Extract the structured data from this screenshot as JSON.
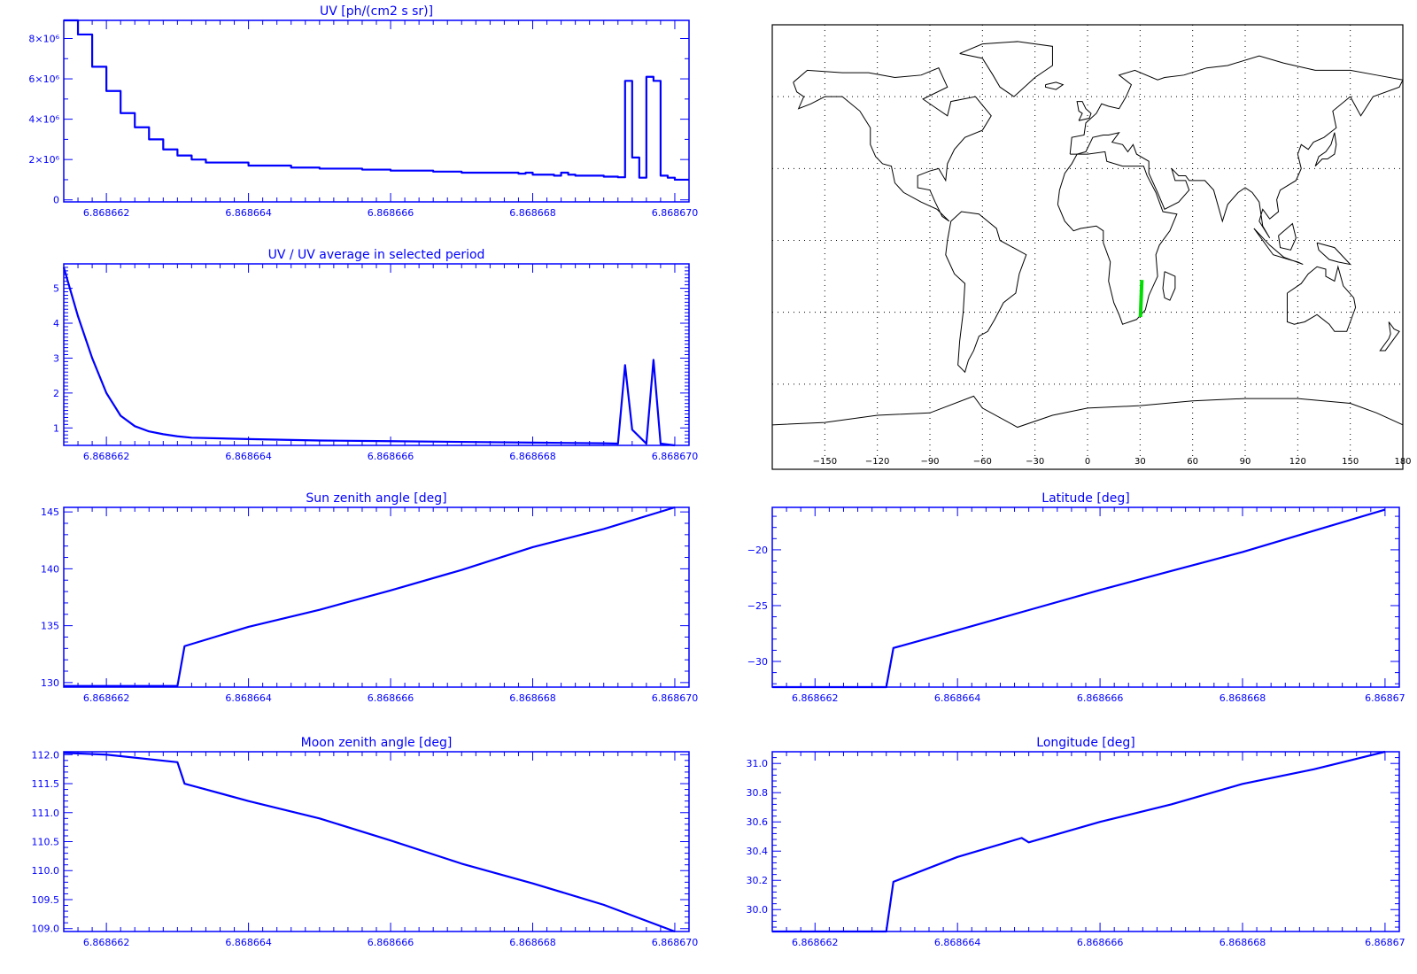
{
  "chart_data": [
    {
      "type": "line",
      "step": true,
      "title": "UV [ph/(cm2 s sr)]",
      "x_tick_labels": [
        "6.868662",
        "6.868664",
        "6.868666",
        "6.868668",
        "6.868670"
      ],
      "x_ticks": [
        6.868662,
        6.868664,
        6.868666,
        6.868668,
        6.86867
      ],
      "xlim": [
        6.8686614,
        6.8686702
      ],
      "ylim": [
        -100000,
        8900000
      ],
      "y_ticks": [
        0,
        2000000,
        4000000,
        6000000,
        8000000
      ],
      "y_tick_labels": [
        "0",
        "2×10⁶",
        "4×10⁶",
        "6×10⁶",
        "8×10⁶"
      ],
      "x": [
        6.8686614,
        6.8686616,
        6.8686618,
        6.868662,
        6.8686622,
        6.8686624,
        6.8686626,
        6.8686628,
        6.868663,
        6.8686632,
        6.8686634,
        6.868664,
        6.8686646,
        6.868665,
        6.8686656,
        6.868666,
        6.8686666,
        6.868667,
        6.8686678,
        6.8686679,
        6.868668,
        6.8686683,
        6.8686684,
        6.8686685,
        6.8686686,
        6.868669,
        6.8686692,
        6.8686693,
        6.8686694,
        6.8686695,
        6.8686696,
        6.8686697,
        6.8686698,
        6.8686699,
        6.86867,
        6.8686701
      ],
      "values": [
        9000000,
        8200000,
        6600000,
        5400000,
        4300000,
        3600000,
        3000000,
        2500000,
        2200000,
        2000000,
        1850000,
        1700000,
        1600000,
        1550000,
        1500000,
        1450000,
        1400000,
        1350000,
        1300000,
        1350000,
        1250000,
        1200000,
        1350000,
        1250000,
        1200000,
        1150000,
        1120000,
        5900000,
        2100000,
        1100000,
        6100000,
        5900000,
        1200000,
        1100000,
        1000000,
        1000000
      ]
    },
    {
      "type": "line",
      "title": "UV / UV average in selected period",
      "x_tick_labels": [
        "6.868662",
        "6.868664",
        "6.868666",
        "6.868668",
        "6.868670"
      ],
      "x_ticks": [
        6.868662,
        6.868664,
        6.868666,
        6.868668,
        6.86867
      ],
      "xlim": [
        6.8686614,
        6.8686702
      ],
      "ylim": [
        0.5,
        5.7
      ],
      "y_ticks": [
        1,
        2,
        3,
        4,
        5
      ],
      "y_tick_labels": [
        "1",
        "2",
        "3",
        "4",
        "5"
      ],
      "x": [
        6.8686614,
        6.8686616,
        6.8686618,
        6.868662,
        6.8686622,
        6.8686624,
        6.8686626,
        6.8686628,
        6.868663,
        6.8686632,
        6.868664,
        6.868665,
        6.868666,
        6.868667,
        6.868668,
        6.868669,
        6.8686692,
        6.8686693,
        6.8686694,
        6.8686696,
        6.8686697,
        6.8686698,
        6.86867
      ],
      "values": [
        5.6,
        4.2,
        3.0,
        2.0,
        1.35,
        1.05,
        0.9,
        0.82,
        0.76,
        0.72,
        0.68,
        0.64,
        0.62,
        0.6,
        0.58,
        0.56,
        0.55,
        2.8,
        0.95,
        0.55,
        2.95,
        0.55,
        0.5
      ]
    },
    {
      "type": "line",
      "title": "Sun zenith angle [deg]",
      "x_tick_labels": [
        "6.868662",
        "6.868664",
        "6.868666",
        "6.868668",
        "6.868670"
      ],
      "x_ticks": [
        6.868662,
        6.868664,
        6.868666,
        6.868668,
        6.86867
      ],
      "xlim": [
        6.8686614,
        6.8686702
      ],
      "ylim": [
        129.6,
        145.4
      ],
      "y_ticks": [
        130,
        135,
        140,
        145
      ],
      "y_tick_labels": [
        "130",
        "135",
        "140",
        "145"
      ],
      "x": [
        6.8686614,
        6.868663,
        6.8686631,
        6.868664,
        6.868665,
        6.868666,
        6.868667,
        6.868668,
        6.868669,
        6.86867
      ],
      "values": [
        129.7,
        129.7,
        133.2,
        134.9,
        136.4,
        138.1,
        139.9,
        141.9,
        143.5,
        145.4
      ]
    },
    {
      "type": "line",
      "title": "Moon zenith angle [deg]",
      "x_tick_labels": [
        "6.868662",
        "6.868664",
        "6.868666",
        "6.868668",
        "6.868670"
      ],
      "x_ticks": [
        6.868662,
        6.868664,
        6.868666,
        6.868668,
        6.86867
      ],
      "xlim": [
        6.8686614,
        6.8686702
      ],
      "ylim": [
        108.95,
        112.05
      ],
      "y_ticks": [
        109.0,
        109.5,
        110.0,
        110.5,
        111.0,
        111.5,
        112.0
      ],
      "y_tick_labels": [
        "109.0",
        "109.5",
        "110.0",
        "110.5",
        "111.0",
        "111.5",
        "112.0"
      ],
      "x": [
        6.8686614,
        6.868662,
        6.868663,
        6.8686631,
        6.868664,
        6.868665,
        6.868666,
        6.868667,
        6.868668,
        6.868669,
        6.86867
      ],
      "values": [
        112.03,
        112.0,
        111.87,
        111.5,
        111.2,
        110.9,
        110.52,
        110.12,
        109.78,
        109.41,
        108.95
      ]
    },
    {
      "type": "line",
      "title": "Latitude [deg]",
      "x_tick_labels": [
        "6.868662",
        "6.868664",
        "6.868666",
        "6.868668",
        "6.86867"
      ],
      "x_ticks": [
        6.868662,
        6.868664,
        6.868666,
        6.868668,
        6.86867
      ],
      "xlim": [
        6.8686614,
        6.8686702
      ],
      "ylim": [
        -32.3,
        -16.2
      ],
      "y_ticks": [
        -30,
        -25,
        -20
      ],
      "y_tick_labels": [
        "−30",
        "−25",
        "−20"
      ],
      "x": [
        6.8686614,
        6.868663,
        6.8686631,
        6.868664,
        6.868665,
        6.868666,
        6.868667,
        6.868668,
        6.868669,
        6.86867
      ],
      "values": [
        -32.3,
        -32.3,
        -28.8,
        -27.2,
        -25.4,
        -23.6,
        -21.9,
        -20.2,
        -18.3,
        -16.4
      ]
    },
    {
      "type": "line",
      "title": "Longitude [deg]",
      "x_tick_labels": [
        "6.868662",
        "6.868664",
        "6.868666",
        "6.868668",
        "6.86867"
      ],
      "x_ticks": [
        6.868662,
        6.868664,
        6.868666,
        6.868668,
        6.86867
      ],
      "xlim": [
        6.8686614,
        6.8686702
      ],
      "ylim": [
        29.85,
        31.08
      ],
      "y_ticks": [
        30.0,
        30.2,
        30.4,
        30.6,
        30.8,
        31.0
      ],
      "y_tick_labels": [
        "30.0",
        "30.2",
        "30.4",
        "30.6",
        "30.8",
        "31.0"
      ],
      "x": [
        6.8686614,
        6.868663,
        6.8686631,
        6.868664,
        6.8686649,
        6.868665,
        6.868666,
        6.868667,
        6.868668,
        6.868669,
        6.86867
      ],
      "values": [
        29.85,
        29.85,
        30.19,
        30.36,
        30.49,
        30.46,
        30.6,
        30.72,
        30.86,
        30.96,
        31.08
      ]
    }
  ],
  "map": {
    "lon_tick_labels": [
      "−150",
      "−120",
      "−90",
      "−60",
      "−30",
      "0",
      "30",
      "60",
      "90",
      "120",
      "150",
      "180"
    ],
    "lon_ticks": [
      -150,
      -120,
      -90,
      -60,
      -30,
      0,
      30,
      60,
      90,
      120,
      150,
      180
    ],
    "lat_grid": [
      -60,
      -30,
      0,
      30,
      60
    ],
    "track": {
      "lon": [
        30.2,
        31.0
      ],
      "lat": [
        -32.0,
        -16.5
      ]
    },
    "track_color": "#00dd00",
    "coast_color": "#000000"
  },
  "colors": {
    "axis": "#0000ff",
    "line": "#0000ff"
  }
}
